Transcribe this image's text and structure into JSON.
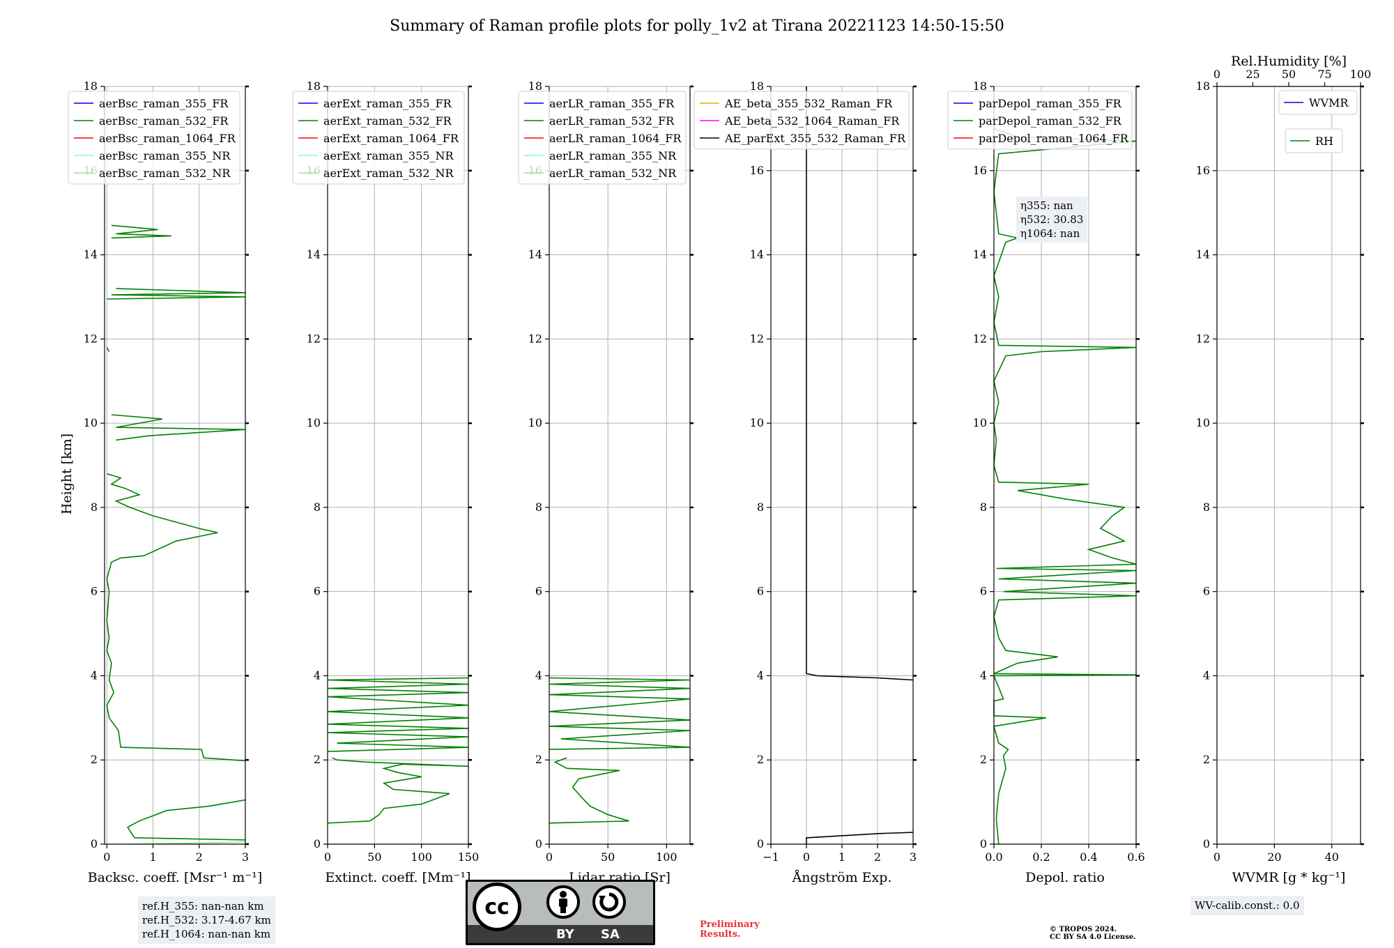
{
  "title": "Summary of Raman profile plots for polly_1v2 at Tirana 20221123 14:50-15:50",
  "colors": {
    "blue": "#0000ff",
    "green": "#008000",
    "red": "#ff0000",
    "cyan": "#7fffd4",
    "lightgreen": "#90ee90",
    "orange": "#ffa500",
    "magenta": "#ff00ff",
    "black": "#000000"
  },
  "ref_heights": [
    "ref.H_355: nan-nan km",
    "ref.H_532: 3.17-4.67 km",
    "ref.H_1064: nan-nan km"
  ],
  "eta_box": [
    "η355: nan",
    "η532: 30.83",
    "η1064: nan"
  ],
  "wv_calib": "WV-calib.const.: 0.0",
  "cc_license": {
    "label_by": "BY",
    "label_sa": "SA",
    "logo": "cc"
  },
  "preliminary": [
    "Preliminary",
    "Results."
  ],
  "copyright": [
    "© TROPOS 2024.",
    "CC BY SA 4.0 License."
  ],
  "chart_data": [
    {
      "type": "line",
      "xlabel": "Backsc. coeff. [Msr⁻¹ m⁻¹]",
      "ylabel": "Height [km]",
      "xlim": [
        -0.05,
        3
      ],
      "ylim": [
        0,
        18
      ],
      "xticks": [
        "0",
        "1",
        "2",
        "3"
      ],
      "yticks": [
        "0",
        "2",
        "4",
        "6",
        "8",
        "10",
        "12",
        "14",
        "16",
        "18"
      ],
      "grid": true,
      "legend_position": "top-left",
      "legend": [
        "aerBsc_raman_355_FR",
        "aerBsc_raman_532_FR",
        "aerBsc_raman_1064_FR",
        "aerBsc_raman_355_NR",
        "aerBsc_raman_532_NR"
      ],
      "series": [
        {
          "name": "aerBsc_raman_532_NR",
          "points": [
            [
              0.5,
              0.0
            ],
            [
              3.0,
              0.05
            ]
          ]
        },
        {
          "name": "aerBsc_raman_532_FR",
          "points": [
            [
              3.0,
              0.1
            ],
            [
              0.6,
              0.15
            ],
            [
              0.45,
              0.4
            ],
            [
              0.7,
              0.55
            ],
            [
              1.3,
              0.8
            ],
            [
              2.2,
              0.9
            ],
            [
              3.0,
              1.05
            ]
          ]
        },
        {
          "name": "aerBsc_raman_532_FR",
          "points": [
            [
              3.0,
              1.98
            ],
            [
              2.1,
              2.05
            ],
            [
              2.05,
              2.25
            ],
            [
              0.3,
              2.3
            ],
            [
              0.25,
              2.7
            ],
            [
              0.05,
              3.0
            ],
            [
              0.0,
              3.3
            ],
            [
              0.15,
              3.6
            ],
            [
              0.05,
              3.9
            ],
            [
              0.1,
              4.3
            ],
            [
              0.0,
              4.6
            ],
            [
              0.05,
              4.9
            ],
            [
              0.0,
              5.3
            ],
            [
              0.05,
              6.0
            ],
            [
              0.0,
              6.3
            ],
            [
              0.1,
              6.7
            ],
            [
              0.3,
              6.8
            ],
            [
              0.8,
              6.85
            ],
            [
              1.5,
              7.2
            ],
            [
              2.4,
              7.4
            ],
            [
              2.0,
              7.5
            ],
            [
              1.0,
              7.8
            ],
            [
              0.5,
              8.0
            ],
            [
              0.2,
              8.15
            ],
            [
              0.7,
              8.3
            ],
            [
              0.4,
              8.45
            ],
            [
              0.1,
              8.55
            ],
            [
              0.3,
              8.7
            ],
            [
              0.0,
              8.8
            ]
          ]
        },
        {
          "name": "aerBsc_raman_532_FR",
          "points": [
            [
              0.2,
              9.6
            ],
            [
              0.9,
              9.7
            ],
            [
              3.0,
              9.85
            ],
            [
              0.2,
              9.9
            ],
            [
              1.2,
              10.1
            ],
            [
              0.1,
              10.2
            ]
          ]
        },
        {
          "name": "aerBsc_raman_532_FR",
          "points": [
            [
              0.05,
              11.7
            ],
            [
              0.0,
              11.8
            ]
          ]
        },
        {
          "name": "aerBsc_raman_532_FR",
          "points": [
            [
              0.0,
              12.95
            ],
            [
              3.0,
              13.0
            ],
            [
              0.1,
              13.05
            ],
            [
              3.0,
              13.1
            ],
            [
              0.2,
              13.2
            ]
          ]
        },
        {
          "name": "aerBsc_raman_532_FR",
          "points": [
            [
              0.1,
              14.4
            ],
            [
              1.4,
              14.45
            ],
            [
              0.2,
              14.5
            ],
            [
              1.1,
              14.6
            ],
            [
              0.1,
              14.7
            ]
          ]
        }
      ]
    },
    {
      "type": "line",
      "xlabel": "Extinct. coeff. [Mm⁻¹]",
      "xlim": [
        0,
        150
      ],
      "ylim": [
        0,
        18
      ],
      "xticks": [
        "0",
        "50",
        "100",
        "150"
      ],
      "yticks": [
        "0",
        "2",
        "4",
        "6",
        "8",
        "10",
        "12",
        "14",
        "16",
        "18"
      ],
      "grid": true,
      "legend_position": "top-left",
      "legend": [
        "aerExt_raman_355_FR",
        "aerExt_raman_532_FR",
        "aerExt_raman_1064_FR",
        "aerExt_raman_355_NR",
        "aerExt_raman_532_NR"
      ],
      "series": [
        {
          "name": "aerExt_raman_532_FR",
          "points": [
            [
              0,
              0.5
            ],
            [
              45,
              0.55
            ],
            [
              55,
              0.7
            ],
            [
              60,
              0.85
            ],
            [
              100,
              0.95
            ],
            [
              130,
              1.2
            ],
            [
              70,
              1.3
            ],
            [
              60,
              1.45
            ],
            [
              100,
              1.6
            ],
            [
              75,
              1.7
            ],
            [
              60,
              1.8
            ],
            [
              80,
              1.9
            ],
            [
              150,
              1.85
            ],
            [
              40,
              1.95
            ],
            [
              10,
              2.0
            ],
            [
              5,
              2.05
            ]
          ]
        },
        {
          "name": "aerExt_raman_532_FR",
          "points": [
            [
              0,
              2.2
            ],
            [
              150,
              2.3
            ],
            [
              10,
              2.4
            ],
            [
              150,
              2.55
            ],
            [
              0,
              2.65
            ],
            [
              150,
              2.75
            ],
            [
              0,
              2.85
            ],
            [
              150,
              3.0
            ],
            [
              0,
              3.15
            ],
            [
              150,
              3.3
            ],
            [
              0,
              3.5
            ],
            [
              150,
              3.6
            ],
            [
              0,
              3.7
            ],
            [
              150,
              3.8
            ],
            [
              0,
              3.9
            ],
            [
              150,
              3.95
            ]
          ]
        }
      ]
    },
    {
      "type": "line",
      "xlabel": "Lidar ratio [Sr]",
      "xlim": [
        0,
        120
      ],
      "ylim": [
        0,
        18
      ],
      "xticks": [
        "0",
        "50",
        "100"
      ],
      "yticks": [
        "0",
        "2",
        "4",
        "6",
        "8",
        "10",
        "12",
        "14",
        "16",
        "18"
      ],
      "grid": true,
      "legend_position": "top-left",
      "legend": [
        "aerLR_raman_355_FR",
        "aerLR_raman_532_FR",
        "aerLR_raman_1064_FR",
        "aerLR_raman_355_NR",
        "aerLR_raman_532_NR"
      ],
      "series": [
        {
          "name": "aerLR_raman_532_FR",
          "points": [
            [
              0,
              0.5
            ],
            [
              68,
              0.55
            ],
            [
              50,
              0.7
            ],
            [
              35,
              0.9
            ],
            [
              28,
              1.1
            ],
            [
              20,
              1.35
            ],
            [
              25,
              1.55
            ],
            [
              60,
              1.75
            ],
            [
              15,
              1.8
            ],
            [
              5,
              1.95
            ],
            [
              15,
              2.05
            ]
          ]
        },
        {
          "name": "aerLR_raman_532_FR",
          "points": [
            [
              0,
              2.25
            ],
            [
              120,
              2.3
            ],
            [
              10,
              2.5
            ],
            [
              120,
              2.7
            ],
            [
              0,
              2.8
            ],
            [
              120,
              2.95
            ],
            [
              0,
              3.15
            ],
            [
              120,
              3.45
            ],
            [
              0,
              3.55
            ],
            [
              120,
              3.7
            ],
            [
              0,
              3.8
            ],
            [
              120,
              3.9
            ],
            [
              0,
              3.95
            ]
          ]
        }
      ]
    },
    {
      "type": "line",
      "xlabel": "Ångström Exp.",
      "xlim": [
        -1,
        3
      ],
      "ylim": [
        0,
        18
      ],
      "xticks": [
        "−1",
        "0",
        "1",
        "2",
        "3"
      ],
      "yticks": [
        "0",
        "2",
        "4",
        "6",
        "8",
        "10",
        "12",
        "14",
        "16",
        "18"
      ],
      "grid": true,
      "legend_position": "top-right",
      "legend": [
        "AE_beta_355_532_Raman_FR",
        "AE_beta_532_1064_Raman_FR",
        "AE_parExt_355_532_Raman_FR"
      ],
      "series": [
        {
          "name": "AE_parExt_355_532_Raman_FR",
          "points": [
            [
              0,
              0.0
            ],
            [
              0,
              0.15
            ],
            [
              1,
              0.2
            ],
            [
              2,
              0.25
            ],
            [
              3,
              0.28
            ]
          ]
        },
        {
          "name": "AE_parExt_355_532_Raman_FR",
          "points": [
            [
              3,
              3.9
            ],
            [
              2,
              3.95
            ],
            [
              0.3,
              4.0
            ],
            [
              0,
              4.05
            ],
            [
              0,
              18
            ]
          ]
        }
      ]
    },
    {
      "type": "line",
      "xlabel": "Depol. ratio",
      "xlim": [
        0,
        0.6
      ],
      "ylim": [
        0,
        18
      ],
      "xticks": [
        "0.0",
        "0.2",
        "0.4",
        "0.6"
      ],
      "yticks": [
        "0",
        "2",
        "4",
        "6",
        "8",
        "10",
        "12",
        "14",
        "16",
        "18"
      ],
      "grid": true,
      "legend_position": "top-left",
      "legend": [
        "parDepol_raman_355_FR",
        "parDepol_raman_532_FR",
        "parDepol_raman_1064_FR"
      ],
      "series": [
        {
          "name": "parDepol_raman_532_FR",
          "points": [
            [
              0.02,
              0.0
            ],
            [
              0.01,
              0.6
            ],
            [
              0.02,
              1.2
            ],
            [
              0.05,
              1.8
            ],
            [
              0.04,
              2.1
            ],
            [
              0.06,
              2.25
            ],
            [
              0.02,
              2.4
            ],
            [
              0.0,
              2.8
            ],
            [
              0.22,
              3.0
            ],
            [
              0.0,
              3.05
            ],
            [
              0.0,
              3.4
            ],
            [
              0.04,
              3.45
            ],
            [
              0.0,
              4.0
            ],
            [
              0.6,
              4.02
            ],
            [
              0.0,
              4.05
            ],
            [
              0.1,
              4.3
            ],
            [
              0.27,
              4.45
            ],
            [
              0.05,
              4.6
            ],
            [
              0.02,
              4.9
            ],
            [
              0.0,
              5.4
            ],
            [
              0.02,
              5.8
            ],
            [
              0.6,
              5.9
            ],
            [
              0.04,
              6.0
            ],
            [
              0.6,
              6.2
            ],
            [
              0.02,
              6.3
            ],
            [
              0.6,
              6.5
            ],
            [
              0.01,
              6.55
            ],
            [
              0.6,
              6.65
            ],
            [
              0.5,
              6.8
            ],
            [
              0.4,
              7.0
            ],
            [
              0.55,
              7.2
            ],
            [
              0.45,
              7.5
            ],
            [
              0.5,
              7.8
            ],
            [
              0.55,
              8.0
            ],
            [
              0.3,
              8.2
            ],
            [
              0.1,
              8.4
            ],
            [
              0.4,
              8.55
            ],
            [
              0.02,
              8.6
            ],
            [
              0.0,
              9.0
            ],
            [
              0.01,
              9.6
            ],
            [
              0.0,
              10.0
            ],
            [
              0.02,
              10.5
            ],
            [
              0.0,
              11.0
            ],
            [
              0.05,
              11.6
            ],
            [
              0.2,
              11.7
            ],
            [
              0.6,
              11.8
            ],
            [
              0.02,
              11.85
            ],
            [
              0.0,
              12.4
            ],
            [
              0.02,
              13.0
            ],
            [
              0.0,
              13.5
            ],
            [
              0.05,
              14.3
            ],
            [
              0.1,
              14.4
            ],
            [
              0.02,
              14.5
            ],
            [
              0.0,
              15.5
            ],
            [
              0.02,
              16.4
            ],
            [
              0.6,
              16.7
            ],
            [
              0.1,
              16.8
            ],
            [
              0.0,
              17.0
            ]
          ]
        }
      ]
    },
    {
      "type": "line",
      "xlabel": "WVMR [g * kg⁻¹]",
      "top_xlabel": "Rel.Humidity [%]",
      "xlim": [
        0,
        50
      ],
      "top_xlim": [
        0,
        100
      ],
      "ylim": [
        0,
        18
      ],
      "xticks": [
        "0",
        "20",
        "40"
      ],
      "top_xticks": [
        "0",
        "25",
        "50",
        "75",
        "100"
      ],
      "yticks": [
        "0",
        "2",
        "4",
        "6",
        "8",
        "10",
        "12",
        "14",
        "16",
        "18"
      ],
      "grid": true,
      "legend_position": "top-right",
      "legend": [
        "WVMR",
        "RH"
      ],
      "series": []
    }
  ]
}
